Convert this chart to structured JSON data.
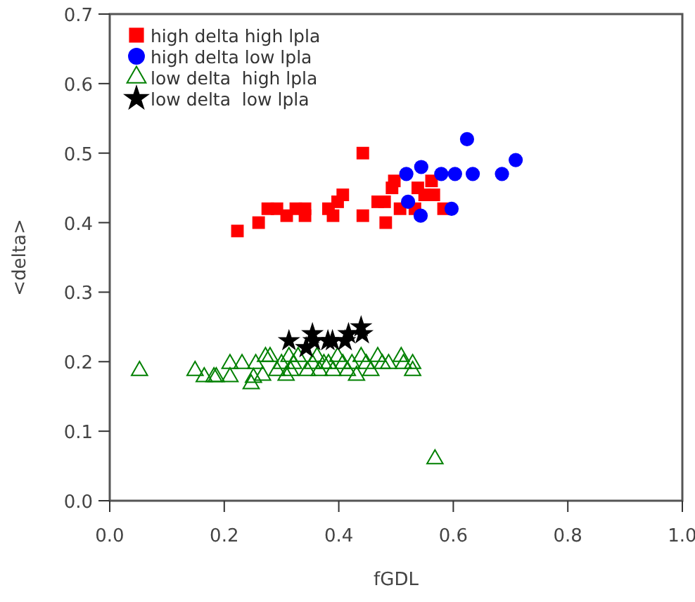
{
  "chart_data": {
    "type": "scatter",
    "xlabel": "fGDL",
    "ylabel": "<delta>",
    "xlim": [
      0,
      1
    ],
    "ylim": [
      0,
      0.7
    ],
    "xticks": [
      {
        "value": 0,
        "label": "0.0"
      },
      {
        "value": 0.2,
        "label": "0.2"
      },
      {
        "value": 0.4,
        "label": "0.4"
      },
      {
        "value": 0.6,
        "label": "0.6"
      },
      {
        "value": 0.8,
        "label": "0.8"
      },
      {
        "value": 1,
        "label": "1.0"
      }
    ],
    "yticks": [
      {
        "value": 0,
        "label": "0.0"
      },
      {
        "value": 0.1,
        "label": "0.1"
      },
      {
        "value": 0.2,
        "label": "0.2"
      },
      {
        "value": 0.3,
        "label": "0.3"
      },
      {
        "value": 0.4,
        "label": "0.4"
      },
      {
        "value": 0.5,
        "label": "0.5"
      },
      {
        "value": 0.6,
        "label": "0.6"
      },
      {
        "value": 0.7,
        "label": "0.7"
      }
    ],
    "grid": false,
    "legend": "top left",
    "series": [
      {
        "name": "high delta high lpla",
        "color": "#ff0000",
        "marker": "square",
        "x": [
          0.223,
          0.26,
          0.276,
          0.292,
          0.309,
          0.325,
          0.341,
          0.341,
          0.382,
          0.39,
          0.398,
          0.407,
          0.442,
          0.442,
          0.468,
          0.48,
          0.482,
          0.493,
          0.497,
          0.507,
          0.538,
          0.533,
          0.55,
          0.562,
          0.566,
          0.583
        ],
        "values": [
          0.388,
          0.4,
          0.42,
          0.42,
          0.41,
          0.42,
          0.42,
          0.41,
          0.42,
          0.41,
          0.43,
          0.44,
          0.5,
          0.41,
          0.43,
          0.43,
          0.4,
          0.45,
          0.46,
          0.42,
          0.45,
          0.42,
          0.44,
          0.46,
          0.44,
          0.42
        ]
      },
      {
        "name": "high delta low lpla",
        "color": "#0000ff",
        "marker": "circle",
        "x": [
          0.518,
          0.544,
          0.521,
          0.543,
          0.579,
          0.597,
          0.603,
          0.624,
          0.634,
          0.685,
          0.709
        ],
        "values": [
          0.47,
          0.48,
          0.43,
          0.41,
          0.47,
          0.42,
          0.47,
          0.52,
          0.47,
          0.47,
          0.49
        ]
      },
      {
        "name": "low delta  high lpla",
        "color": "#008000",
        "marker": "triangle",
        "x": [
          0.052,
          0.149,
          0.165,
          0.182,
          0.186,
          0.21,
          0.21,
          0.231,
          0.247,
          0.251,
          0.255,
          0.267,
          0.272,
          0.28,
          0.292,
          0.3,
          0.308,
          0.313,
          0.316,
          0.321,
          0.329,
          0.345,
          0.354,
          0.362,
          0.366,
          0.374,
          0.382,
          0.39,
          0.398,
          0.407,
          0.415,
          0.423,
          0.431,
          0.439,
          0.448,
          0.456,
          0.468,
          0.476,
          0.487,
          0.509,
          0.513,
          0.529,
          0.529,
          0.568
        ],
        "values": [
          0.187,
          0.187,
          0.178,
          0.178,
          0.178,
          0.178,
          0.197,
          0.197,
          0.168,
          0.177,
          0.197,
          0.18,
          0.207,
          0.207,
          0.187,
          0.197,
          0.18,
          0.207,
          0.187,
          0.197,
          0.207,
          0.187,
          0.197,
          0.207,
          0.187,
          0.197,
          0.197,
          0.187,
          0.207,
          0.197,
          0.187,
          0.197,
          0.18,
          0.207,
          0.197,
          0.187,
          0.207,
          0.197,
          0.197,
          0.207,
          0.197,
          0.197,
          0.187,
          0.06
        ]
      },
      {
        "name": "low delta  low lpla",
        "color": "#000000",
        "marker": "star",
        "x": [
          0.313,
          0.343,
          0.354,
          0.356,
          0.381,
          0.389,
          0.411,
          0.417,
          0.439,
          0.441
        ],
        "values": [
          0.23,
          0.22,
          0.24,
          0.23,
          0.23,
          0.23,
          0.23,
          0.24,
          0.25,
          0.24
        ]
      }
    ]
  }
}
